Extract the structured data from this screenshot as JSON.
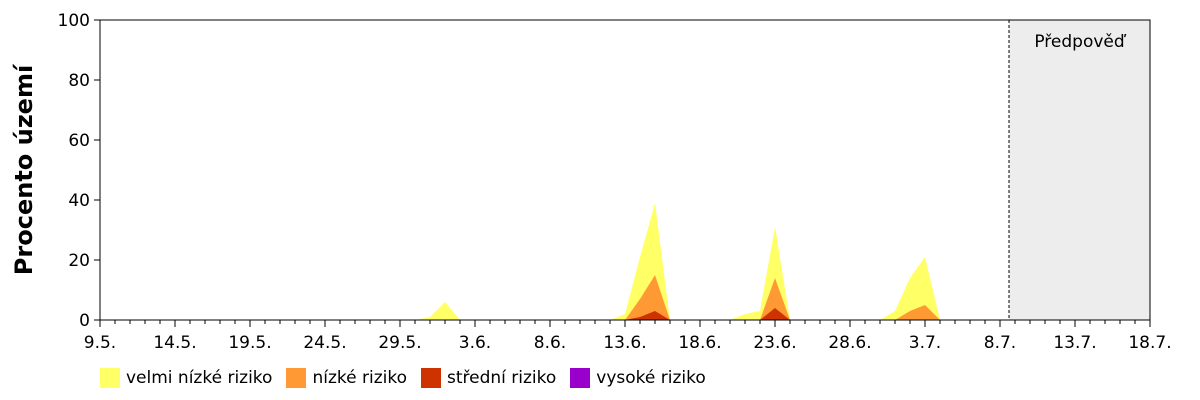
{
  "chart_data": {
    "type": "area",
    "stacked": true,
    "title": "",
    "xlabel": "",
    "ylabel": "Procento území",
    "ylim": [
      0,
      100
    ],
    "yticks": [
      0,
      20,
      40,
      60,
      80,
      100
    ],
    "x_start": "9.5.",
    "x_end": "18.7.",
    "xticks": [
      {
        "label": "9.5.",
        "day": 0
      },
      {
        "label": "14.5.",
        "day": 5
      },
      {
        "label": "19.5.",
        "day": 10
      },
      {
        "label": "24.5.",
        "day": 15
      },
      {
        "label": "29.5.",
        "day": 20
      },
      {
        "label": "3.6.",
        "day": 25
      },
      {
        "label": "8.6.",
        "day": 30
      },
      {
        "label": "13.6.",
        "day": 35
      },
      {
        "label": "18.6.",
        "day": 40
      },
      {
        "label": "23.6.",
        "day": 45
      },
      {
        "label": "28.6.",
        "day": 50
      },
      {
        "label": "3.7.",
        "day": 55
      },
      {
        "label": "8.7.",
        "day": 60
      },
      {
        "label": "13.7.",
        "day": 65
      },
      {
        "label": "18.7.",
        "day": 70
      }
    ],
    "forecast": {
      "label": "Předpověď",
      "from_day": 60.6,
      "to_day": 70
    },
    "legend_position": "bottom",
    "series": [
      {
        "name": "velmi nízké riziko",
        "color": "#FFFF66",
        "points": [
          [
            21,
            0
          ],
          [
            22,
            1
          ],
          [
            23,
            6
          ],
          [
            24,
            0
          ],
          [
            34,
            0
          ],
          [
            35,
            2
          ],
          [
            36,
            21
          ],
          [
            37,
            39
          ],
          [
            38,
            0
          ],
          [
            42,
            0
          ],
          [
            43,
            2
          ],
          [
            44,
            3
          ],
          [
            45,
            31
          ],
          [
            46,
            0
          ],
          [
            52,
            0
          ],
          [
            53,
            3
          ],
          [
            54,
            14
          ],
          [
            55,
            21
          ],
          [
            56,
            0
          ]
        ]
      },
      {
        "name": "nízké riziko",
        "color": "#FF9933",
        "points": [
          [
            35,
            0
          ],
          [
            36,
            7
          ],
          [
            37,
            15
          ],
          [
            38,
            0
          ],
          [
            44,
            0
          ],
          [
            45,
            14
          ],
          [
            46,
            0
          ],
          [
            53,
            0
          ],
          [
            54,
            3
          ],
          [
            55,
            5
          ],
          [
            56,
            0
          ]
        ]
      },
      {
        "name": "střední riziko",
        "color": "#CC3300",
        "points": [
          [
            35,
            0
          ],
          [
            36,
            1
          ],
          [
            37,
            3
          ],
          [
            38,
            0
          ],
          [
            44,
            0
          ],
          [
            45,
            4
          ],
          [
            46,
            0
          ]
        ]
      },
      {
        "name": "vysoké riziko",
        "color": "#9900CC",
        "points": []
      }
    ]
  }
}
